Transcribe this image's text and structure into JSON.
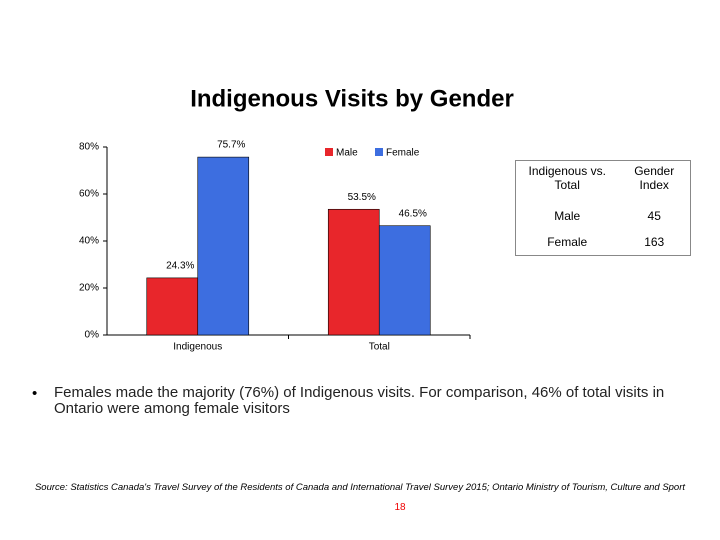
{
  "chart_data": {
    "type": "bar",
    "title": "Indigenous Visits by Gender",
    "categories": [
      "Indigenous",
      "Total"
    ],
    "series": [
      {
        "name": "Male",
        "color": "#e8262b",
        "values": [
          24.3,
          53.5
        ],
        "value_labels": [
          "24.3%",
          "53.5%"
        ]
      },
      {
        "name": "Female",
        "color": "#3d6ee0",
        "values": [
          75.7,
          46.5
        ],
        "value_labels": [
          "75.7%",
          "46.5%"
        ]
      }
    ],
    "ylim": [
      0,
      80
    ],
    "yticks": [
      {
        "value": 0,
        "label": "0%"
      },
      {
        "value": 20,
        "label": "20%"
      },
      {
        "value": 40,
        "label": "40%"
      },
      {
        "value": 60,
        "label": "60%"
      },
      {
        "value": 80,
        "label": "80%"
      }
    ],
    "grid": false,
    "legend": "top"
  },
  "table": {
    "header": [
      "Indigenous vs. Total",
      "Gender Index"
    ],
    "rows": [
      [
        "Male",
        45
      ],
      [
        "Female",
        163
      ]
    ]
  },
  "bullet": "Females made the majority (76%) of Indigenous visits.  For comparison, 46% of total visits in Ontario were among female visitors",
  "source": "Source: Statistics Canada's Travel Survey of the Residents of Canada and International Travel Survey 2015; Ontario Ministry of Tourism, Culture and Sport",
  "page_number": "18"
}
